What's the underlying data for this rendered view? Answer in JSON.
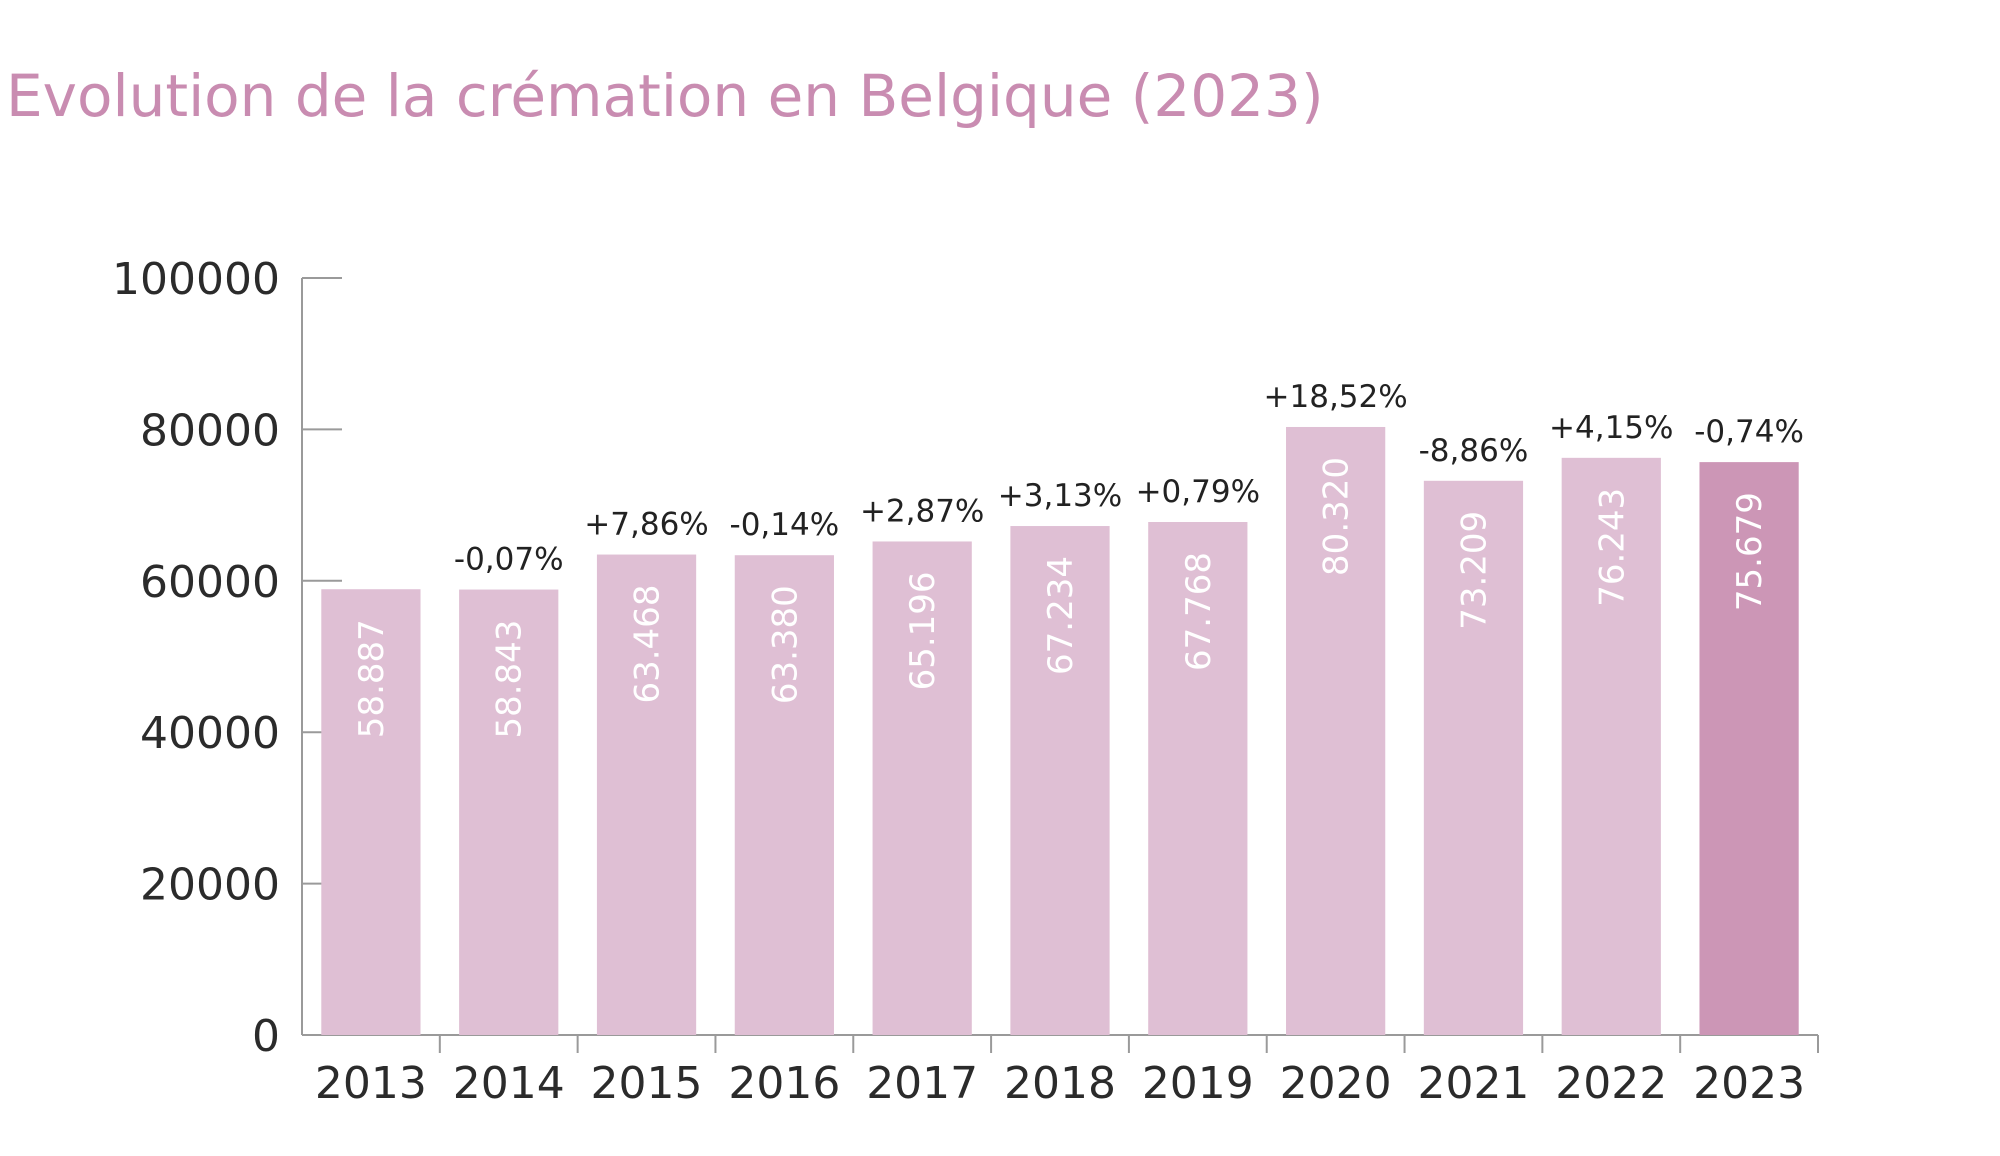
{
  "chart_data": {
    "type": "bar",
    "title": "Evolution de la crémation en Belgique (2023)",
    "xlabel": "",
    "ylabel": "",
    "ylim": [
      0,
      100000
    ],
    "yticks": [
      "0",
      "20000",
      "40000",
      "60000",
      "80000",
      "100000"
    ],
    "categories": [
      "2013",
      "2014",
      "2015",
      "2016",
      "2017",
      "2018",
      "2019",
      "2020",
      "2021",
      "2022",
      "2023"
    ],
    "values": [
      58887,
      58843,
      63468,
      63380,
      65196,
      67234,
      67768,
      80320,
      73209,
      76243,
      75679
    ],
    "value_labels": [
      "58.887",
      "58.843",
      "63.468",
      "63.380",
      "65.196",
      "67.234",
      "67.768",
      "80.320",
      "73.209",
      "76.243",
      "75.679"
    ],
    "change_labels": [
      "",
      "-0,07%",
      "+7,86%",
      "-0,14%",
      "+2,87%",
      "+3,13%",
      "+0,79%",
      "+18,52%",
      "-8,86%",
      "+4,15%",
      "-0,74%"
    ],
    "grid": false,
    "legend": "none",
    "colors": {
      "bar": "#dfbfd4",
      "highlight_bar": "#cc96b6",
      "title": "#c98cb1",
      "axis": "#9a9a9a"
    },
    "highlight_index": 10
  }
}
